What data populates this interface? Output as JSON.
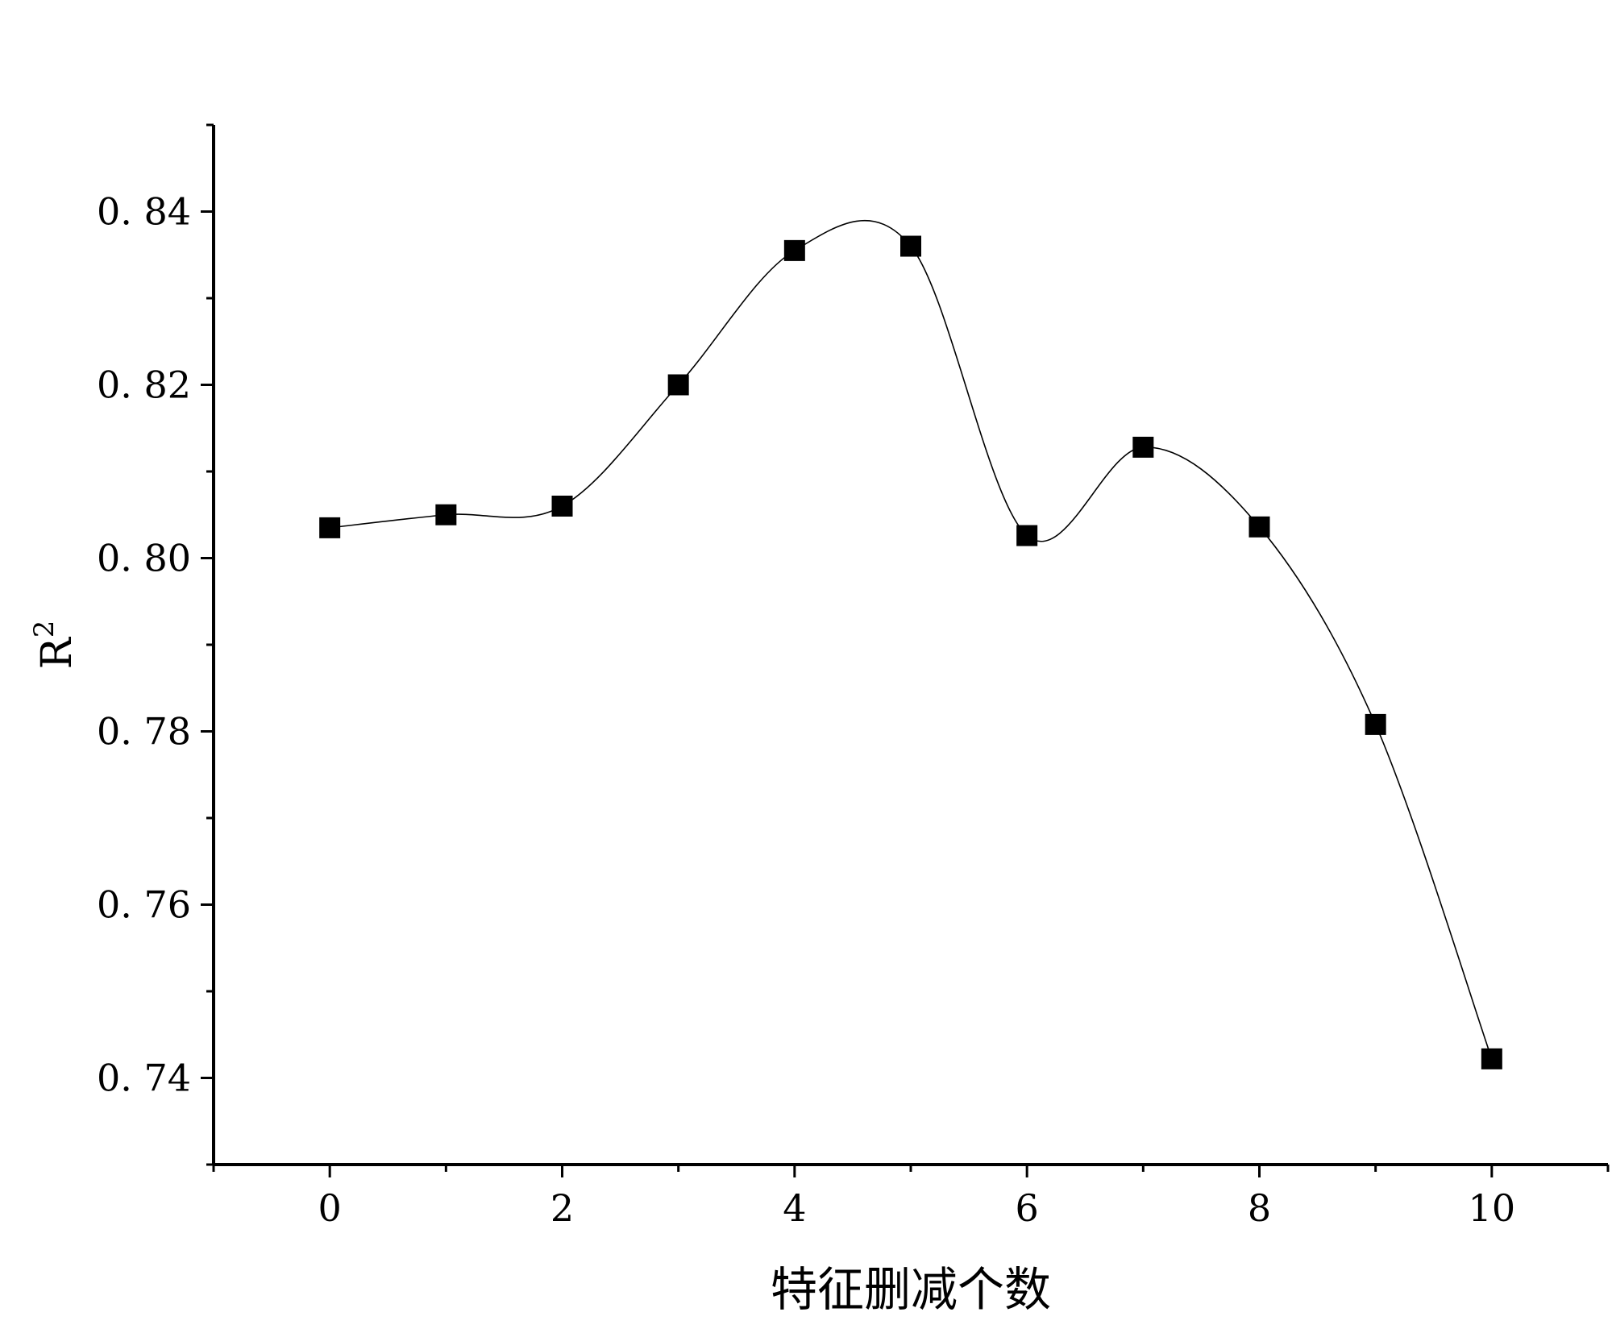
{
  "chart_data": {
    "type": "line",
    "title": "",
    "xlabel": "特征删减个数",
    "ylabel": "R",
    "ylabel_superscript": "2",
    "xlim": [
      -1,
      11
    ],
    "ylim": [
      0.73,
      0.85
    ],
    "xticks": [
      0,
      2,
      4,
      6,
      8,
      10
    ],
    "xtick_labels": [
      "0",
      "2",
      "4",
      "6",
      "8",
      "10"
    ],
    "yticks": [
      0.74,
      0.76,
      0.78,
      0.8,
      0.82,
      0.84
    ],
    "ytick_labels": [
      "0. 74",
      "0. 76",
      "0. 78",
      "0. 80",
      "0. 82",
      "0. 84"
    ],
    "grid": false,
    "legend": false,
    "smooth": true,
    "marker": "square",
    "colors": {
      "line": "#000000",
      "marker": "#000000"
    },
    "series": [
      {
        "x": [
          0,
          1,
          2,
          3,
          4,
          5,
          6,
          7,
          8,
          9,
          10
        ],
        "y": [
          0.8035,
          0.805,
          0.806,
          0.82,
          0.8355,
          0.836,
          0.8026,
          0.8128,
          0.8036,
          0.7808,
          0.7422
        ]
      }
    ]
  }
}
